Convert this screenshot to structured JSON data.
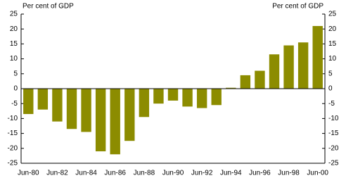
{
  "chart_data": {
    "type": "bar",
    "y_label": "Per cent of GDP",
    "y2_label": "Per cent of GDP",
    "categories": [
      "Jun-80",
      null,
      "Jun-82",
      null,
      "Jun-84",
      null,
      "Jun-86",
      null,
      "Jun-88",
      null,
      "Jun-90",
      null,
      "Jun-92",
      null,
      "Jun-94",
      null,
      "Jun-96",
      null,
      "Jun-98",
      null,
      "Jun-00"
    ],
    "values": [
      -8.5,
      -7,
      -11,
      -13.5,
      -14.5,
      -21,
      -22,
      -17.5,
      -9.5,
      -5,
      -4,
      -6,
      -6.5,
      -5.5,
      0.3,
      4.5,
      6,
      11.5,
      14.5,
      15.5,
      21
    ],
    "color": "#8c8c00",
    "ylim": [
      -25,
      25
    ],
    "yticks": [
      -25,
      -20,
      -15,
      -10,
      -5,
      0,
      5,
      10,
      15,
      20,
      25
    ],
    "y2lim": [
      -25,
      25
    ],
    "y2ticks": [
      -25,
      -20,
      -15,
      -10,
      -5,
      0,
      5,
      10,
      15,
      20,
      25
    ]
  }
}
